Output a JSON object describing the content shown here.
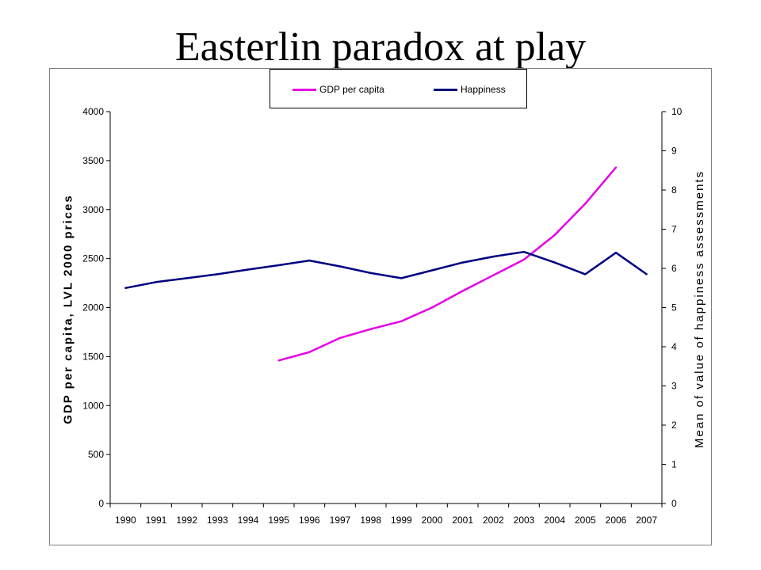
{
  "slide": {
    "title": "Easterlin paradox at play"
  },
  "colors": {
    "gdp": "#e600e6",
    "happiness": "#000080",
    "axis": "#000000",
    "frame": "#808080"
  },
  "chart_data": {
    "type": "line",
    "categories": [
      "1990",
      "1991",
      "1992",
      "1993",
      "1994",
      "1995",
      "1996",
      "1997",
      "1998",
      "1999",
      "2000",
      "2001",
      "2002",
      "2003",
      "2004",
      "2005",
      "2006",
      "2007"
    ],
    "series": [
      {
        "name": "GDP per capita",
        "axis": "left",
        "color": "#e600e6",
        "values": [
          null,
          null,
          null,
          null,
          null,
          1460,
          1545,
          1690,
          1780,
          1860,
          2000,
          2170,
          2330,
          2490,
          2740,
          3060,
          3430,
          null
        ]
      },
      {
        "name": "Happiness",
        "axis": "right",
        "color": "#000080",
        "values": [
          5.5,
          5.65,
          5.75,
          5.85,
          5.97,
          6.08,
          6.2,
          6.05,
          5.88,
          5.75,
          5.95,
          6.15,
          6.3,
          6.42,
          6.15,
          5.85,
          6.4,
          5.85
        ]
      }
    ],
    "ylabel_left": "GDP per capita, LVL 2000 prices",
    "ylabel_right": "Mean of value of happiness assessments",
    "ylim_left": [
      0,
      4000
    ],
    "yticks_left": [
      0,
      500,
      1000,
      1500,
      2000,
      2500,
      3000,
      3500,
      4000
    ],
    "ylim_right": [
      0,
      10
    ],
    "yticks_right": [
      0,
      1,
      2,
      3,
      4,
      5,
      6,
      7,
      8,
      9,
      10
    ],
    "grid": false,
    "legend": "top-center"
  }
}
